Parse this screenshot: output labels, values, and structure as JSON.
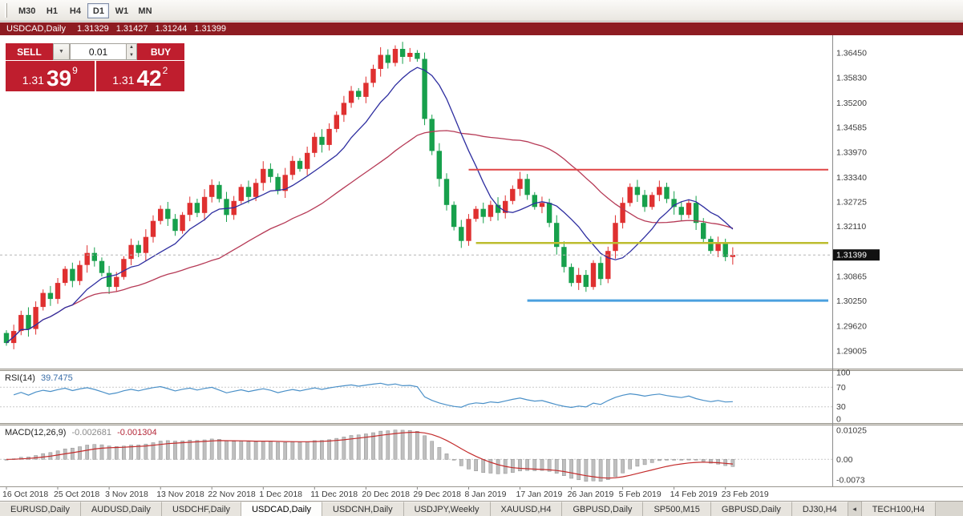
{
  "toolbar": {
    "timeframes": [
      "M30",
      "H1",
      "H4",
      "D1",
      "W1",
      "MN"
    ],
    "active_timeframe": "D1"
  },
  "title_bar": {
    "symbol": "USDCAD,Daily",
    "open": "1.31329",
    "high": "1.31427",
    "low": "1.31244",
    "close": "1.31399"
  },
  "trade_panel": {
    "sell_label": "SELL",
    "buy_label": "BUY",
    "volume": "0.01",
    "bid": {
      "prefix": "1.31",
      "pips": "39",
      "fractional": "9"
    },
    "ask": {
      "prefix": "1.31",
      "pips": "42",
      "fractional": "2"
    }
  },
  "icons": {
    "dropdown": "▼",
    "spin_up": "▲",
    "spin_down": "▼",
    "tab_scroll_left": "◂"
  },
  "price_axis": {
    "labels": [
      "1.36450",
      "1.35830",
      "1.35200",
      "1.34585",
      "1.33970",
      "1.33340",
      "1.32725",
      "1.32110",
      "1.30865",
      "1.30250",
      "1.29620",
      "1.29005"
    ],
    "current_price": "1.31399"
  },
  "rsi_panel": {
    "name": "RSI(14)",
    "value": "39.7475",
    "axis_labels": [
      "100",
      "70",
      "30",
      "0"
    ],
    "levels": [
      70,
      30
    ]
  },
  "macd_panel": {
    "name": "MACD(12,26,9)",
    "value_main": "-0.002681",
    "value_signal": "-0.001304",
    "axis_labels": [
      "0.01025",
      "0.00",
      "-0.0073"
    ]
  },
  "tabs": {
    "items": [
      "EURUSD,Daily",
      "AUDUSD,Daily",
      "USDCHF,Daily",
      "USDCAD,Daily",
      "USDCNH,Daily",
      "USDJPY,Weekly",
      "XAUUSD,H4",
      "GBPUSD,Daily",
      "SP500,M15",
      "GBPUSD,Daily",
      "DJ30,H4",
      "TECH100,H4"
    ],
    "active_index": 3
  },
  "colors": {
    "bull_candle": "#df3030",
    "bear_candle": "#17a04c",
    "ma_fast": "#2e2ea0",
    "ma_slow": "#b63a56",
    "hline_red": "#e04545",
    "hline_yellow": "#bdbd2f",
    "hline_blue": "#4aa0df",
    "rsi_line": "#4a90c8",
    "macd_signal": "#c32b2b",
    "macd_hist": "#bfbfbf",
    "accent_red": "#bf1e2e",
    "titlebar_bg": "#8e1c22",
    "price_tag_bg": "#111111"
  },
  "chart_data": {
    "type": "candlestick",
    "symbol": "USDCAD",
    "timeframe": "Daily",
    "price_range": [
      1.2856,
      1.3689
    ],
    "first_open": 1.2945,
    "closes": [
      1.292,
      1.295,
      1.299,
      1.2955,
      1.301,
      1.3045,
      1.303,
      1.307,
      1.3105,
      1.3075,
      1.3115,
      1.3145,
      1.3125,
      1.3095,
      1.306,
      1.3085,
      1.313,
      1.3165,
      1.3145,
      1.3185,
      1.3225,
      1.3255,
      1.323,
      1.32,
      1.324,
      1.327,
      1.3245,
      1.3285,
      1.3315,
      1.328,
      1.324,
      1.3275,
      1.331,
      1.3285,
      1.332,
      1.3355,
      1.3335,
      1.33,
      1.334,
      1.3375,
      1.3355,
      1.3395,
      1.3435,
      1.3415,
      1.3455,
      1.349,
      1.352,
      1.355,
      1.3535,
      1.357,
      1.3605,
      1.364,
      1.362,
      1.3655,
      1.3635,
      1.3645,
      1.363,
      1.348,
      1.34,
      1.333,
      1.3265,
      1.321,
      1.3175,
      1.323,
      1.3255,
      1.3235,
      1.3265,
      1.3245,
      1.3275,
      1.3305,
      1.333,
      1.329,
      1.326,
      1.327,
      1.322,
      1.316,
      1.311,
      1.307,
      1.309,
      1.306,
      1.312,
      1.308,
      1.315,
      1.322,
      1.327,
      1.331,
      1.329,
      1.326,
      1.329,
      1.331,
      1.328,
      1.326,
      1.324,
      1.327,
      1.322,
      1.318,
      1.315,
      1.317,
      1.3135,
      1.314
    ],
    "last_price": 1.31399,
    "hlines": [
      {
        "price": 1.3353,
        "color": "#e04545",
        "from_bar": 63,
        "width": 2
      },
      {
        "price": 1.317,
        "color": "#bdbd2f",
        "from_bar": 64,
        "width": 2.5
      },
      {
        "price": 1.3026,
        "color": "#4aa0df",
        "from_bar": 71,
        "width": 3
      }
    ],
    "date_ticks": [
      {
        "label": "16 Oct 2018",
        "bar": 0
      },
      {
        "label": "25 Oct 2018",
        "bar": 7
      },
      {
        "label": "3 Nov 2018",
        "bar": 14
      },
      {
        "label": "13 Nov 2018",
        "bar": 21
      },
      {
        "label": "22 Nov 2018",
        "bar": 28
      },
      {
        "label": "1 Dec 2018",
        "bar": 35
      },
      {
        "label": "11 Dec 2018",
        "bar": 42
      },
      {
        "label": "20 Dec 2018",
        "bar": 49
      },
      {
        "label": "29 Dec 2018",
        "bar": 56
      },
      {
        "label": "8 Jan 2019",
        "bar": 63
      },
      {
        "label": "17 Jan 2019",
        "bar": 70
      },
      {
        "label": "26 Jan 2019",
        "bar": 77
      },
      {
        "label": "5 Feb 2019",
        "bar": 84
      },
      {
        "label": "14 Feb 2019",
        "bar": 91
      },
      {
        "label": "23 Feb 2019",
        "bar": 98
      }
    ],
    "indicators": {
      "ma_fast": 10,
      "ma_slow": 30,
      "rsi": 14,
      "macd": [
        12,
        26,
        9
      ]
    }
  }
}
